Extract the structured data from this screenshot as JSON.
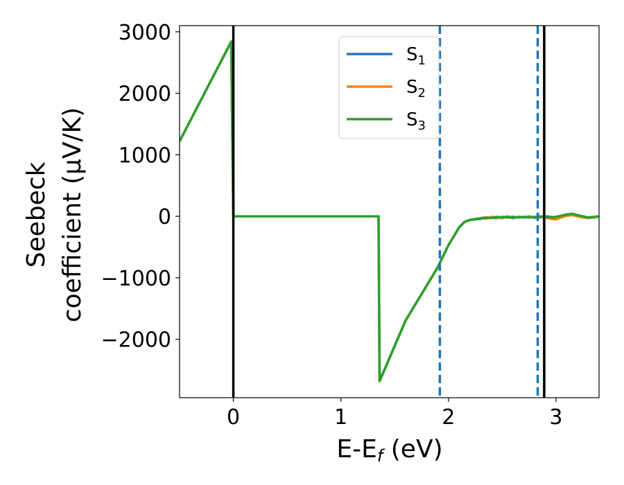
{
  "chart_data": {
    "type": "line",
    "title": "",
    "xlabel": "E-E",
    "xlabel_sub": "f",
    "xlabel_unit": " (eV)",
    "ylabel_line1": "Seebeck",
    "ylabel_line2": "coefficient  (μV/K)",
    "xlim": [
      -0.5,
      3.4
    ],
    "ylim": [
      -2950,
      3100
    ],
    "xticks": [
      0,
      1,
      2,
      3
    ],
    "xtick_labels": [
      "0",
      "1",
      "2",
      "3"
    ],
    "yticks": [
      -2000,
      -1000,
      0,
      1000,
      2000,
      3000
    ],
    "ytick_labels": [
      "−2000",
      "−1000",
      "0",
      "1000",
      "2000",
      "3000"
    ],
    "grid": false,
    "legend_position": "upper-center",
    "series": [
      {
        "name": "S",
        "sub": "1",
        "color": "#1f77b4",
        "x": [
          -0.5,
          -0.02,
          -0.01,
          0.0,
          1.35,
          1.36,
          1.6,
          1.9,
          2.0,
          2.1,
          2.15,
          2.2,
          2.3,
          2.35,
          2.4,
          2.45,
          2.5,
          2.55,
          2.6,
          2.65,
          2.7,
          2.75,
          2.8,
          2.85,
          2.9,
          2.95,
          3.0,
          3.05,
          3.1,
          3.15,
          3.2,
          3.25,
          3.3,
          3.35,
          3.4
        ],
        "y": [
          1220,
          2840,
          1400,
          0,
          0,
          -2680,
          -1700,
          -830,
          -470,
          -180,
          -90,
          -60,
          -40,
          -30,
          -20,
          -30,
          -10,
          -20,
          -10,
          -20,
          -10,
          -20,
          -10,
          -20,
          0,
          -10,
          -20,
          0,
          20,
          30,
          10,
          -10,
          -20,
          -10,
          0
        ]
      },
      {
        "name": "S",
        "sub": "2",
        "color": "#ff7f0e",
        "x": [
          -0.5,
          -0.02,
          -0.01,
          0.0,
          1.35,
          1.36,
          1.6,
          1.9,
          2.0,
          2.1,
          2.15,
          2.2,
          2.3,
          2.35,
          2.4,
          2.45,
          2.5,
          2.55,
          2.6,
          2.65,
          2.7,
          2.75,
          2.8,
          2.85,
          2.9,
          2.95,
          3.0,
          3.05,
          3.1,
          3.15,
          3.2,
          3.25,
          3.3,
          3.35,
          3.4
        ],
        "y": [
          1220,
          2840,
          1400,
          0,
          0,
          -2680,
          -1700,
          -830,
          -470,
          -180,
          -90,
          -60,
          -30,
          -40,
          -10,
          -20,
          -30,
          0,
          -30,
          -10,
          -20,
          0,
          -30,
          -10,
          -20,
          -40,
          -50,
          -20,
          10,
          20,
          0,
          -20,
          -30,
          -10,
          0
        ]
      },
      {
        "name": "S",
        "sub": "3",
        "color": "#2ca02c",
        "x": [
          -0.5,
          -0.02,
          -0.01,
          0.0,
          1.35,
          1.36,
          1.6,
          1.9,
          2.0,
          2.1,
          2.15,
          2.2,
          2.3,
          2.35,
          2.4,
          2.45,
          2.5,
          2.55,
          2.6,
          2.65,
          2.7,
          2.75,
          2.8,
          2.85,
          2.9,
          2.95,
          3.0,
          3.05,
          3.1,
          3.15,
          3.2,
          3.25,
          3.3,
          3.35,
          3.4
        ],
        "y": [
          1220,
          2840,
          1400,
          0,
          0,
          -2680,
          -1700,
          -830,
          -470,
          -180,
          -90,
          -60,
          -30,
          -20,
          -30,
          -10,
          -20,
          -10,
          -30,
          -10,
          -20,
          -10,
          -20,
          0,
          -10,
          -20,
          -10,
          10,
          30,
          40,
          20,
          0,
          -20,
          -20,
          0
        ]
      }
    ],
    "vlines": [
      {
        "x": 0.0,
        "color": "#000000",
        "style": "solid"
      },
      {
        "x": 2.89,
        "color": "#000000",
        "style": "solid"
      },
      {
        "x": 1.92,
        "color": "#1f77b4",
        "style": "dashed"
      },
      {
        "x": 2.83,
        "color": "#1f77b4",
        "style": "dashed"
      }
    ]
  }
}
